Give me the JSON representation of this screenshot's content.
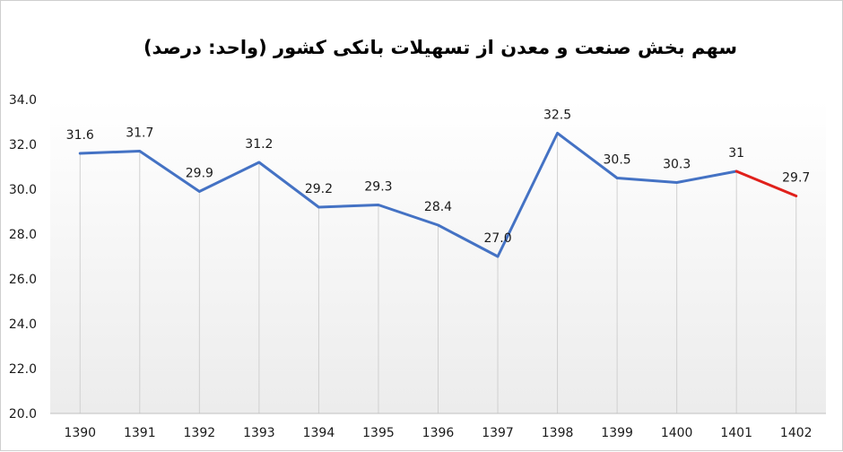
{
  "chart_data": {
    "type": "line",
    "title": "سهم بخش صنعت و معدن از تسهیلات بانکی کشور (واحد: درصد)",
    "xlabel": "",
    "ylabel": "",
    "categories": [
      "1390",
      "1391",
      "1392",
      "1393",
      "1394",
      "1395",
      "1396",
      "1397",
      "1398",
      "1399",
      "1400",
      "1401",
      "1402"
    ],
    "values": [
      31.6,
      31.7,
      29.9,
      31.2,
      29.2,
      29.3,
      28.4,
      27.0,
      32.5,
      30.5,
      30.3,
      30.8,
      29.7
    ],
    "data_labels": [
      "31.6",
      "31.7",
      "29.9",
      "31.2",
      "29.2",
      "29.3",
      "28.4",
      "27.0",
      "32.5",
      "30.5",
      "30.3",
      "31",
      "29.7"
    ],
    "y_ticks": [
      "20.0",
      "22.0",
      "24.0",
      "26.0",
      "28.0",
      "30.0",
      "32.0",
      "34.0"
    ],
    "ylim": [
      20,
      34
    ],
    "grid": "vertical drop lines from each point; plot background shaded light gray",
    "legend": "none",
    "colors": {
      "main_line": "#4472C4",
      "highlight_line": "#E0201B",
      "drop_lines": "#d0d0d0",
      "plot_background": "#f2f2f2"
    },
    "highlight_segment": {
      "from": "1401",
      "to": "1402"
    }
  }
}
